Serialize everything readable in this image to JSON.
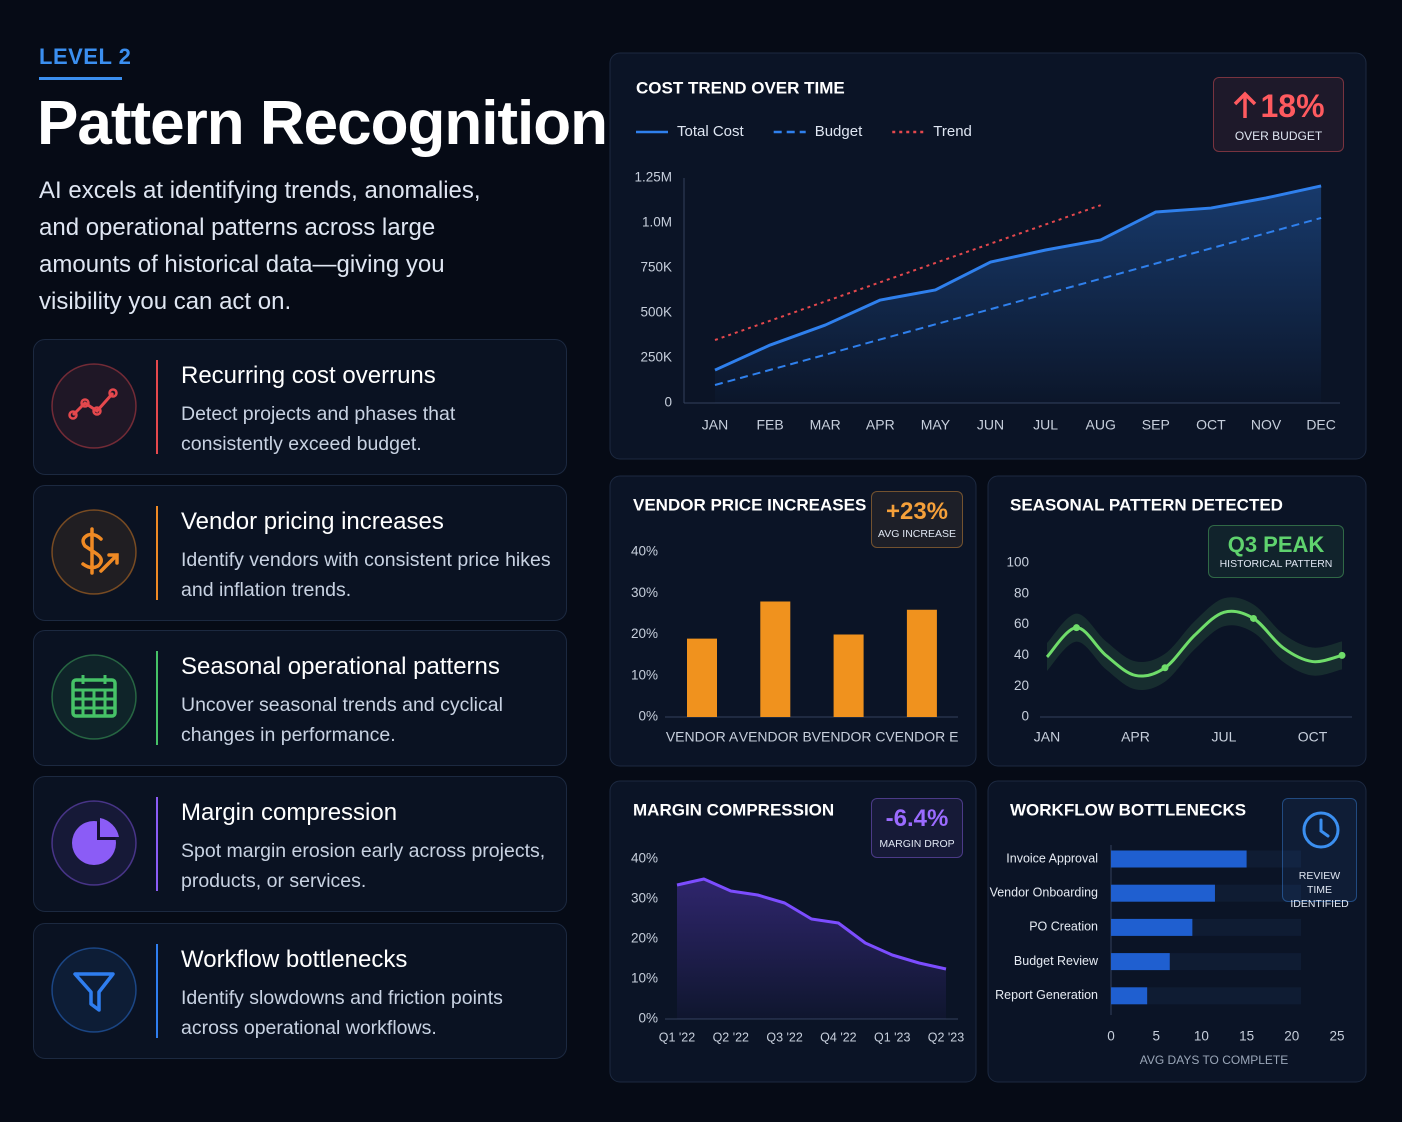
{
  "header": {
    "level": "LEVEL 2",
    "title": "Pattern Recognition",
    "description": "AI excels at identifying trends, anomalies, and operational patterns across large amounts of historical data—giving you visibility you can act on."
  },
  "features": [
    {
      "title": "Recurring cost overruns",
      "text": "Detect projects and phases that consistently exceed budget.",
      "color": "#e5484d"
    },
    {
      "title": "Vendor pricing increases",
      "text": "Identify vendors with consistent price hikes and inflation trends.",
      "color": "#f08a24"
    },
    {
      "title": "Seasonal operational patterns",
      "text": "Uncover seasonal trends and cyclical changes in performance.",
      "color": "#46c267"
    },
    {
      "title": "Margin compression",
      "text": "Spot margin erosion early across projects, products, or services.",
      "color": "#8b5cf6"
    },
    {
      "title": "Workflow bottlenecks",
      "text": "Identify slowdowns and friction points across operational workflows.",
      "color": "#2f7ef0"
    }
  ],
  "chart_data": [
    {
      "type": "line",
      "title": "COST TREND OVER TIME",
      "badge": "18%",
      "badge_label": "OVER BUDGET",
      "badge_color": "#ff5a5f",
      "grid": false,
      "categories": [
        "JAN",
        "FEB",
        "MAR",
        "APR",
        "MAY",
        "JUN",
        "JUL",
        "AUG",
        "SEP",
        "OCT",
        "NOV",
        "DEC"
      ],
      "series": [
        {
          "name": "Total Cost",
          "color": "#2f80ed",
          "style": "solid",
          "fill_area": true,
          "values": [
            183000,
            322000,
            433000,
            572000,
            628000,
            783000,
            850000,
            906000,
            1061000,
            1083000,
            1139000,
            1206000
          ]
        },
        {
          "name": "Budget",
          "color": "#2f80ed",
          "style": "dashed",
          "values": [
            100000,
            184000,
            268000,
            353000,
            437000,
            521000,
            606000,
            690000,
            775000,
            859000,
            943000,
            1028000
          ]
        },
        {
          "name": "Trend",
          "color": "#e5484d",
          "style": "dotted",
          "values": [
            350000,
            457000,
            564000,
            671000,
            778000,
            885000,
            992000,
            1099000,
            null,
            null,
            null,
            null
          ]
        }
      ],
      "ylim": [
        0,
        1250000
      ],
      "yticks": [
        0,
        {
          "value": 250000,
          "label": "250K"
        },
        {
          "value": 500000,
          "label": "500K"
        },
        {
          "value": 750000,
          "label": "750K"
        },
        {
          "value": 1000000,
          "label": "1.0M"
        },
        {
          "value": 1250000,
          "label": "1.25M"
        }
      ]
    },
    {
      "type": "bar",
      "title": "VENDOR PRICE INCREASES",
      "badge": "+23%",
      "badge_label": "AVG INCREASE",
      "badge_color": "#f5a03a",
      "grid": false,
      "categories": [
        "VENDOR A",
        "VENDOR B",
        "VENDOR C",
        "VENDOR E"
      ],
      "values": [
        19,
        28,
        20,
        26
      ],
      "color": "#f0921e",
      "ylim": [
        0,
        40
      ],
      "yticks": [
        {
          "value": 0,
          "label": "0%"
        },
        {
          "value": 10,
          "label": "10%"
        },
        {
          "value": 20,
          "label": "20%"
        },
        {
          "value": 30,
          "label": "30%"
        },
        {
          "value": 40,
          "label": "40%"
        }
      ]
    },
    {
      "type": "line",
      "title": "SEASONAL PATTERN DETECTED",
      "badge": "Q3 PEAK",
      "badge_label": "HISTORICAL PATTERN",
      "badge_color": "#5fd36e",
      "grid": false,
      "categories": [
        "JAN",
        null,
        null,
        "APR",
        null,
        null,
        "JUL",
        null,
        null,
        "OCT",
        null
      ],
      "series": [
        {
          "name": null,
          "color": "#6fdc6a",
          "style": "solid",
          "band": true,
          "markers": true,
          "values": [
            39,
            58,
            40,
            27,
            32,
            53,
            68,
            64,
            45,
            36,
            40
          ]
        }
      ],
      "ylim": [
        0,
        100
      ],
      "yticks": [
        0,
        20,
        40,
        60,
        80,
        100
      ]
    },
    {
      "type": "area",
      "title": "MARGIN COMPRESSION",
      "badge": "-6.4%",
      "badge_label": "MARGIN DROP",
      "badge_color": "#9b6bff",
      "grid": false,
      "categories": [
        "Q1 '22",
        null,
        "Q2 '22",
        null,
        "Q3 '22",
        null,
        "Q4 '22",
        null,
        "Q1 '23",
        null,
        "Q2 '23"
      ],
      "values": [
        33.5,
        35,
        32,
        31,
        29,
        25,
        24,
        19,
        16,
        14,
        12.5
      ],
      "color": "#7c4dff",
      "ylim": [
        0,
        40
      ],
      "yticks": [
        {
          "value": 0,
          "label": "0%"
        },
        {
          "value": 10,
          "label": "10%"
        },
        {
          "value": 20,
          "label": "20%"
        },
        {
          "value": 30,
          "label": "30%"
        },
        {
          "value": 40,
          "label": "40%"
        }
      ]
    },
    {
      "type": "hbar",
      "title": "WORKFLOW BOTTLENECKS",
      "badge_label": "REVIEW TIME IDENTIFIED",
      "badge_color": "#3b8ff0",
      "grid": false,
      "categories": [
        "Invoice Approval",
        "Vendor Onboarding",
        "PO Creation",
        "Budget Review",
        "Report Generation"
      ],
      "values": [
        15,
        11.5,
        9,
        6.5,
        4
      ],
      "color": "#1f5fd0",
      "xlabel": "AVG DAYS TO COMPLETE",
      "xlim": [
        0,
        25
      ],
      "xticks": [
        0,
        5,
        10,
        15,
        20,
        25
      ]
    }
  ]
}
